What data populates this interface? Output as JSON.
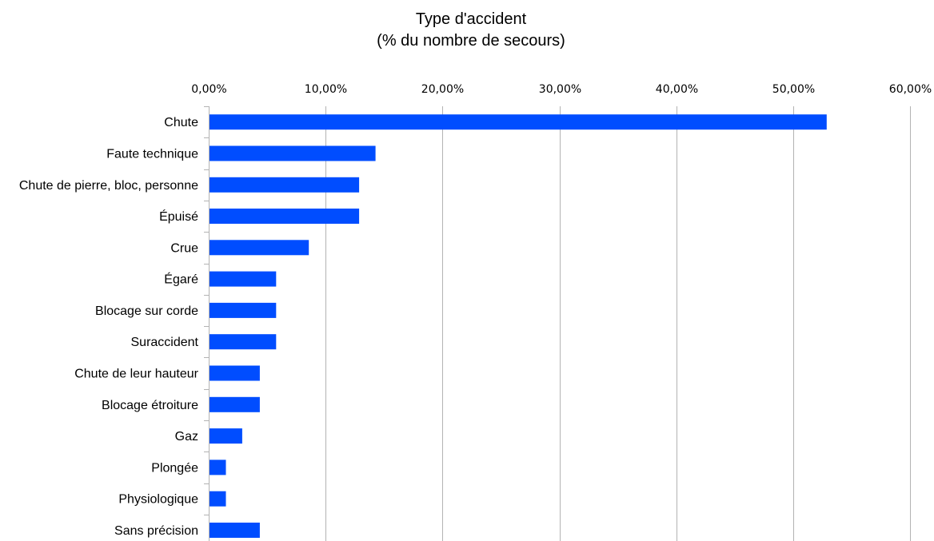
{
  "chart_data": {
    "type": "bar",
    "orientation": "horizontal",
    "title": "Type d'accident",
    "subtitle": "(% du nombre de secours)",
    "xlabel": "",
    "ylabel": "",
    "x_axis_position": "top",
    "xlim": [
      0,
      60
    ],
    "x_ticks": [
      0,
      10,
      20,
      30,
      40,
      50,
      60
    ],
    "x_tick_labels": [
      "0,00%",
      "10,00%",
      "20,00%",
      "30,00%",
      "40,00%",
      "50,00%",
      "60,00%"
    ],
    "grid": "vertical",
    "legend": "none",
    "bar_color": "#004dff",
    "grid_color": "#b3b3b3",
    "categories": [
      "Chute",
      "Faute technique",
      "Chute de pierre, bloc, personne",
      "Épuisé",
      "Crue",
      "Égaré",
      "Blocage sur corde",
      "Suraccident",
      "Chute de leur hauteur",
      "Blocage étroiture",
      "Gaz",
      "Plongée",
      "Physiologique",
      "Sans précision"
    ],
    "values": [
      52.8,
      14.2,
      12.8,
      12.8,
      8.5,
      5.7,
      5.7,
      5.7,
      4.3,
      4.3,
      2.8,
      1.4,
      1.4,
      4.3
    ]
  }
}
